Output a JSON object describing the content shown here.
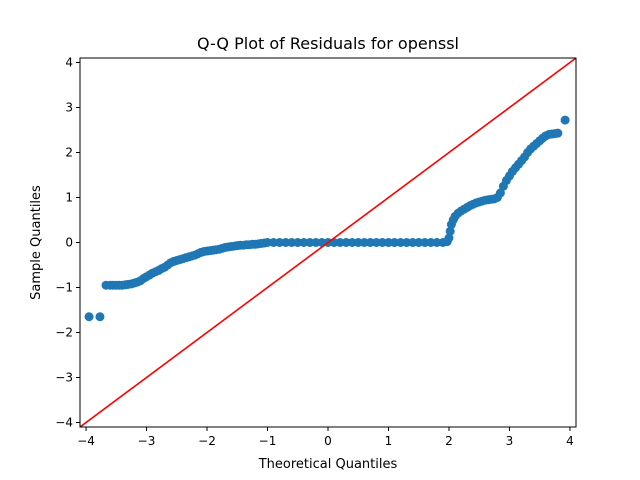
{
  "chart_data": {
    "type": "scatter",
    "title": "Q-Q Plot of Residuals for openssl",
    "xlabel": "Theoretical Quantiles",
    "ylabel": "Sample Quantiles",
    "xlim": [
      -4.1,
      4.1
    ],
    "ylim": [
      -4.1,
      4.1
    ],
    "xticks": [
      -4,
      -3,
      -2,
      -1,
      0,
      1,
      2,
      3,
      4
    ],
    "yticks": [
      -4,
      -3,
      -2,
      -1,
      0,
      1,
      2,
      3,
      4
    ],
    "grid": false,
    "marker_color": "#1f77b4",
    "reference_line": {
      "name": "",
      "color": "#ff0000",
      "slope": 1,
      "intercept": 0
    },
    "points_description_note": "",
    "points": [
      [
        -3.95,
        -1.65
      ],
      [
        -3.77,
        -1.65
      ],
      [
        -3.67,
        -0.95
      ],
      [
        -3.6,
        -0.95
      ],
      [
        -3.55,
        -0.95
      ],
      [
        -3.5,
        -0.95
      ],
      [
        -3.45,
        -0.95
      ],
      [
        -3.4,
        -0.95
      ],
      [
        -3.35,
        -0.94
      ],
      [
        -3.3,
        -0.93
      ],
      [
        -3.25,
        -0.92
      ],
      [
        -3.2,
        -0.9
      ],
      [
        -3.15,
        -0.88
      ],
      [
        -3.1,
        -0.85
      ],
      [
        -3.05,
        -0.8
      ],
      [
        -3.0,
        -0.76
      ],
      [
        -2.95,
        -0.72
      ],
      [
        -2.9,
        -0.68
      ],
      [
        -2.85,
        -0.65
      ],
      [
        -2.8,
        -0.62
      ],
      [
        -2.75,
        -0.58
      ],
      [
        -2.7,
        -0.55
      ],
      [
        -2.65,
        -0.5
      ],
      [
        -2.6,
        -0.45
      ],
      [
        -2.55,
        -0.42
      ],
      [
        -2.5,
        -0.4
      ],
      [
        -2.45,
        -0.38
      ],
      [
        -2.4,
        -0.36
      ],
      [
        -2.35,
        -0.34
      ],
      [
        -2.3,
        -0.32
      ],
      [
        -2.25,
        -0.3
      ],
      [
        -2.2,
        -0.28
      ],
      [
        -2.15,
        -0.25
      ],
      [
        -2.1,
        -0.22
      ],
      [
        -2.05,
        -0.2
      ],
      [
        -2.0,
        -0.19
      ],
      [
        -1.95,
        -0.18
      ],
      [
        -1.9,
        -0.17
      ],
      [
        -1.85,
        -0.16
      ],
      [
        -1.8,
        -0.15
      ],
      [
        -1.75,
        -0.13
      ],
      [
        -1.7,
        -0.11
      ],
      [
        -1.65,
        -0.1
      ],
      [
        -1.6,
        -0.09
      ],
      [
        -1.55,
        -0.08
      ],
      [
        -1.5,
        -0.07
      ],
      [
        -1.45,
        -0.06
      ],
      [
        -1.4,
        -0.06
      ],
      [
        -1.35,
        -0.05
      ],
      [
        -1.3,
        -0.05
      ],
      [
        -1.25,
        -0.04
      ],
      [
        -1.2,
        -0.04
      ],
      [
        -1.15,
        -0.03
      ],
      [
        -1.1,
        -0.02
      ],
      [
        -1.05,
        -0.01
      ],
      [
        -1.0,
        0.0
      ],
      [
        -0.9,
        0.0
      ],
      [
        -0.8,
        0.0
      ],
      [
        -0.7,
        0.0
      ],
      [
        -0.6,
        0.0
      ],
      [
        -0.5,
        0.0
      ],
      [
        -0.4,
        0.0
      ],
      [
        -0.3,
        0.0
      ],
      [
        -0.2,
        0.0
      ],
      [
        -0.1,
        0.0
      ],
      [
        0.0,
        0.0
      ],
      [
        0.1,
        0.0
      ],
      [
        0.2,
        0.0
      ],
      [
        0.3,
        0.0
      ],
      [
        0.4,
        0.0
      ],
      [
        0.5,
        0.0
      ],
      [
        0.6,
        0.0
      ],
      [
        0.7,
        0.0
      ],
      [
        0.8,
        0.0
      ],
      [
        0.9,
        0.0
      ],
      [
        1.0,
        0.0
      ],
      [
        1.1,
        0.0
      ],
      [
        1.2,
        0.0
      ],
      [
        1.3,
        0.0
      ],
      [
        1.4,
        0.0
      ],
      [
        1.5,
        0.0
      ],
      [
        1.6,
        0.0
      ],
      [
        1.7,
        0.0
      ],
      [
        1.8,
        0.0
      ],
      [
        1.9,
        0.0
      ],
      [
        1.97,
        0.02
      ],
      [
        2.0,
        0.1
      ],
      [
        2.02,
        0.25
      ],
      [
        2.04,
        0.4
      ],
      [
        2.07,
        0.5
      ],
      [
        2.1,
        0.58
      ],
      [
        2.15,
        0.65
      ],
      [
        2.2,
        0.7
      ],
      [
        2.25,
        0.74
      ],
      [
        2.3,
        0.78
      ],
      [
        2.35,
        0.82
      ],
      [
        2.4,
        0.85
      ],
      [
        2.45,
        0.88
      ],
      [
        2.5,
        0.9
      ],
      [
        2.55,
        0.92
      ],
      [
        2.6,
        0.94
      ],
      [
        2.65,
        0.95
      ],
      [
        2.7,
        0.96
      ],
      [
        2.75,
        0.97
      ],
      [
        2.8,
        1.0
      ],
      [
        2.85,
        1.1
      ],
      [
        2.9,
        1.25
      ],
      [
        2.95,
        1.38
      ],
      [
        3.0,
        1.48
      ],
      [
        3.05,
        1.58
      ],
      [
        3.1,
        1.66
      ],
      [
        3.15,
        1.74
      ],
      [
        3.2,
        1.82
      ],
      [
        3.25,
        1.9
      ],
      [
        3.3,
        2.0
      ],
      [
        3.35,
        2.08
      ],
      [
        3.4,
        2.14
      ],
      [
        3.45,
        2.2
      ],
      [
        3.5,
        2.26
      ],
      [
        3.55,
        2.32
      ],
      [
        3.6,
        2.37
      ],
      [
        3.65,
        2.4
      ],
      [
        3.7,
        2.41
      ],
      [
        3.75,
        2.42
      ],
      [
        3.8,
        2.43
      ],
      [
        3.92,
        2.72
      ]
    ]
  }
}
